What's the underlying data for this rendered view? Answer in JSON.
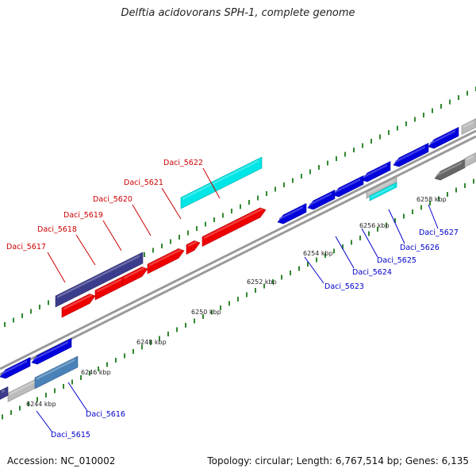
{
  "title": "Delftia acidovorans SPH-1, complete genome",
  "footer": {
    "accession": "Accession: NC_010002",
    "topology": "Topology: circular; Length: 6,767,514 bp; Genes: 6,135"
  },
  "colors": {
    "forward_label": "#cc0000",
    "reverse_label": "#0000cc",
    "red_gene": "#ee0000",
    "blue_gene": "#0000dd",
    "cyan_gene": "#00e5e5",
    "purple_gene": "#3c3c8c",
    "steelblue_gene": "#4a82b8",
    "grey_gene": "#bbbbbb",
    "darkgrey_gene": "#666666",
    "backbone": "#999999",
    "tick": "#1a7a1a"
  },
  "kbp_ticks": [
    "6244 kbp",
    "6246 kbp",
    "6248 kbp",
    "6250 kbp",
    "6252 kbp",
    "6254 kbp",
    "6256 kbp",
    "6258 kbp"
  ],
  "forward_genes": [
    "Daci_5617",
    "Daci_5618",
    "Daci_5619",
    "Daci_5620",
    "Daci_5621",
    "Daci_5622"
  ],
  "reverse_genes": [
    "Daci_5615",
    "Daci_5616",
    "Daci_5623",
    "Daci_5624",
    "Daci_5625",
    "Daci_5626",
    "Daci_5627"
  ]
}
